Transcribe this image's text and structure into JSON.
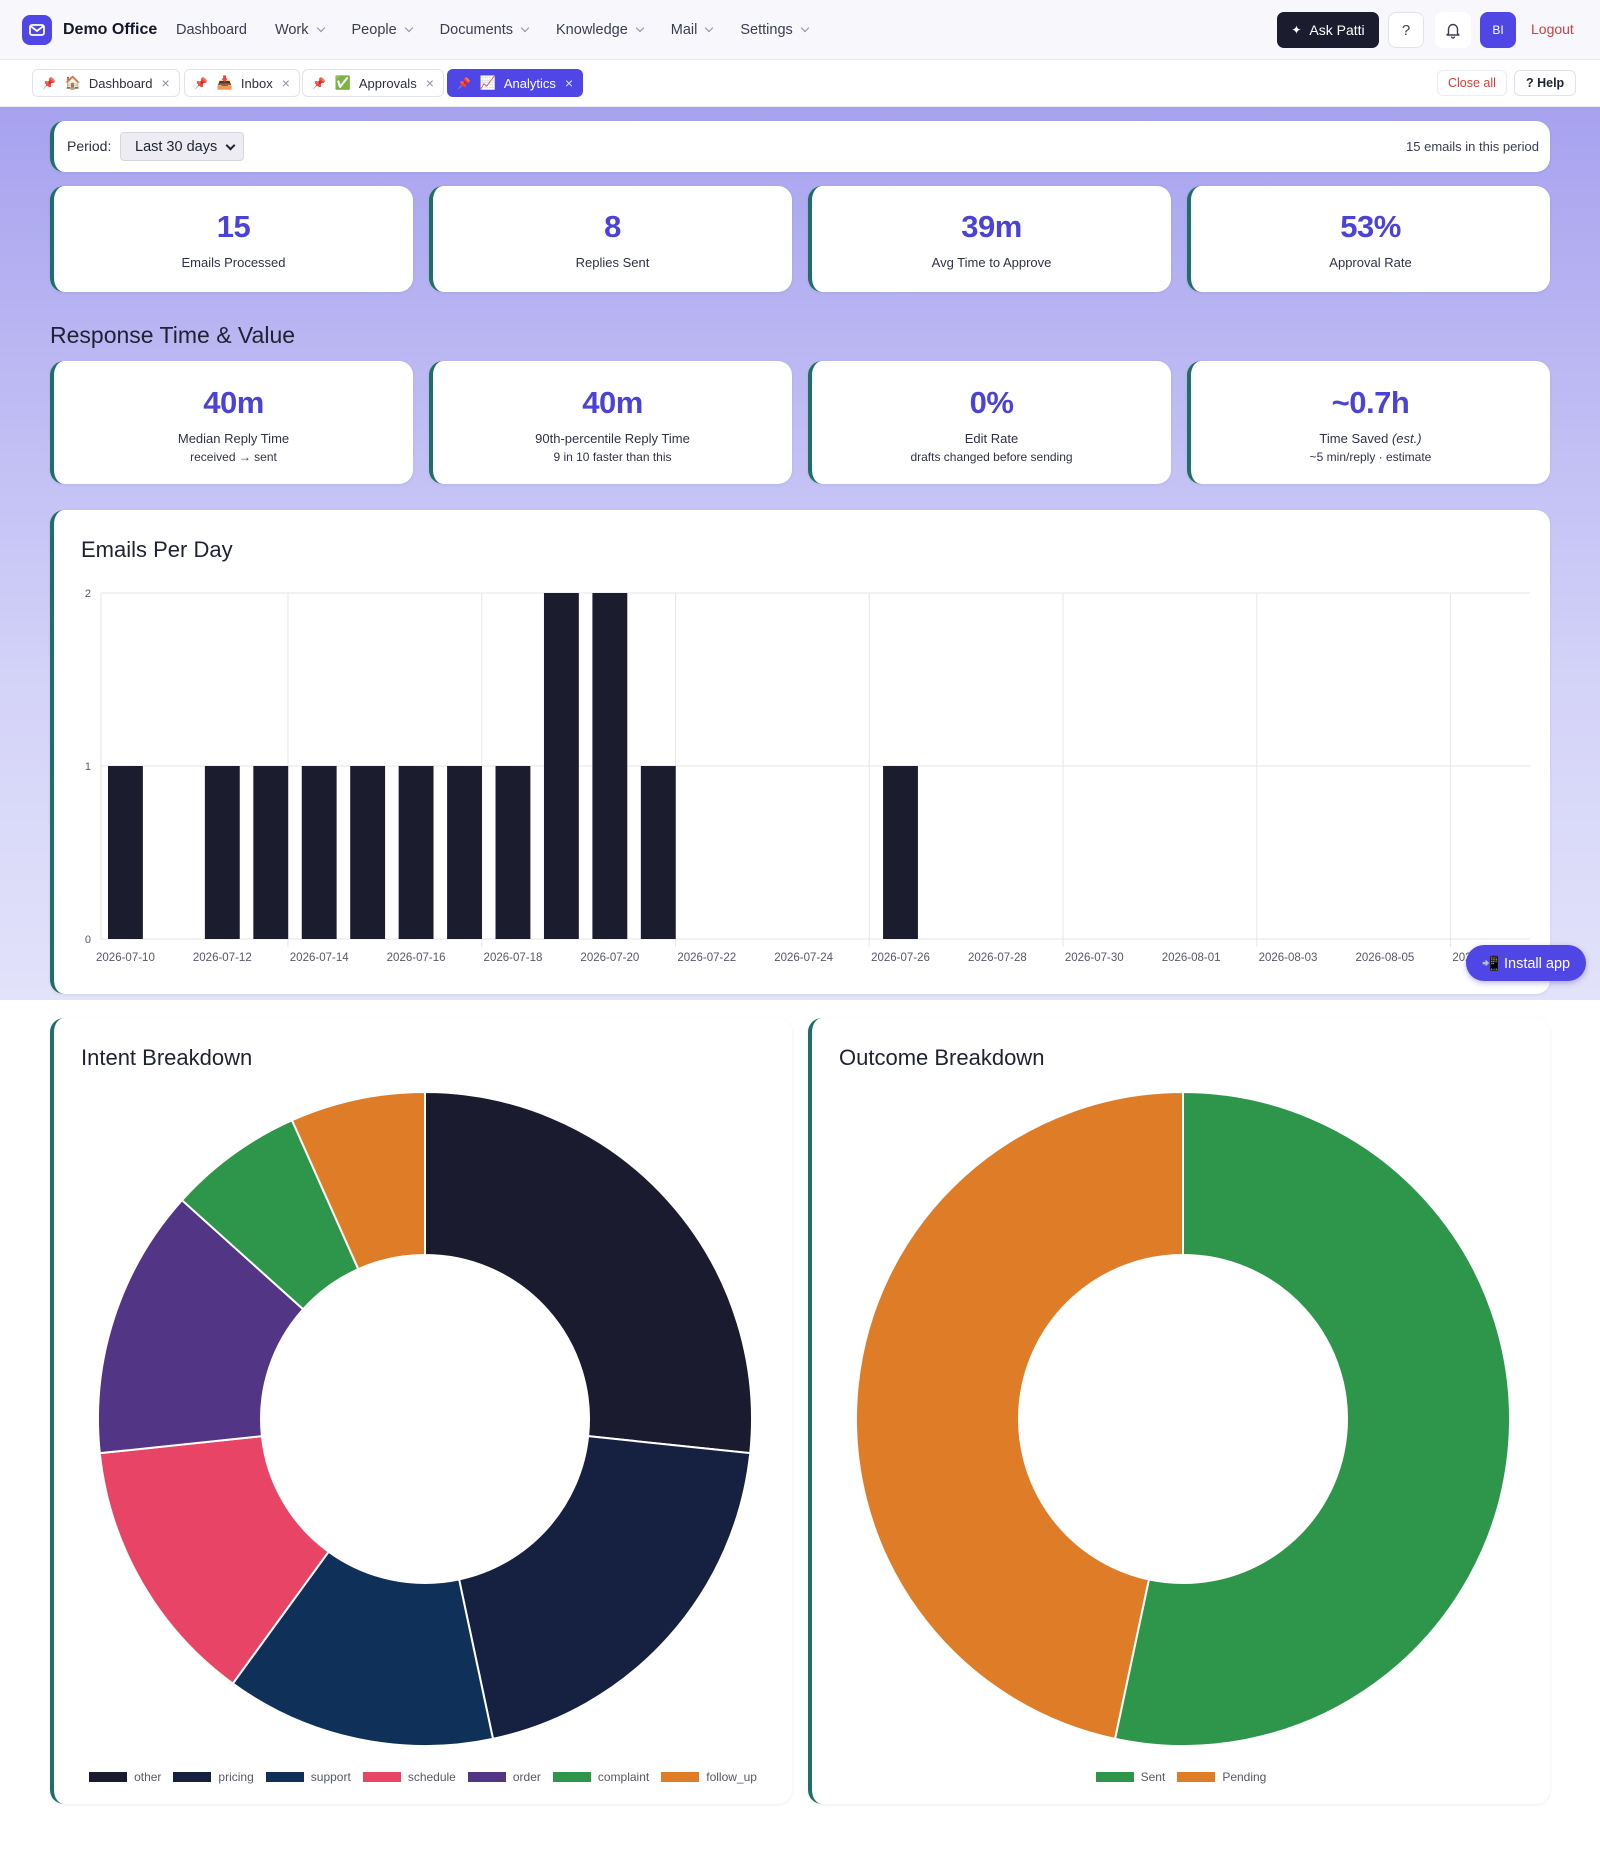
{
  "app": {
    "name": "Demo Office"
  },
  "nav": {
    "items": [
      {
        "label": "Dashboard",
        "dropdown": false
      },
      {
        "label": "Work",
        "dropdown": true
      },
      {
        "label": "People",
        "dropdown": true
      },
      {
        "label": "Documents",
        "dropdown": true
      },
      {
        "label": "Knowledge",
        "dropdown": true
      },
      {
        "label": "Mail",
        "dropdown": true
      },
      {
        "label": "Settings",
        "dropdown": true
      }
    ],
    "ask_label": "Ask Patti",
    "help_icon": "?",
    "avatar_initials": "BI",
    "logout_label": "Logout"
  },
  "tabs": [
    {
      "label": "Dashboard",
      "emoji": "🏠",
      "active": false
    },
    {
      "label": "Inbox",
      "emoji": "📥",
      "active": false
    },
    {
      "label": "Approvals",
      "emoji": "✅",
      "active": false
    },
    {
      "label": "Analytics",
      "emoji": "📈",
      "active": true
    }
  ],
  "tabbar": {
    "close_all": "Close all",
    "help": "? Help"
  },
  "period": {
    "label": "Period:",
    "selected": "Last 30 days",
    "count_text": "15 emails in this period"
  },
  "stats": [
    {
      "value": "15",
      "label": "Emails Processed"
    },
    {
      "value": "8",
      "label": "Replies Sent"
    },
    {
      "value": "39m",
      "label": "Avg Time to Approve"
    },
    {
      "value": "53%",
      "label": "Approval Rate"
    }
  ],
  "response_section": {
    "title": "Response Time & Value",
    "stats": [
      {
        "value": "40m",
        "label": "Median Reply Time",
        "sub": "received → sent"
      },
      {
        "value": "40m",
        "label": "90th-percentile Reply Time",
        "sub": "9 in 10 faster than this"
      },
      {
        "value": "0%",
        "label": "Edit Rate",
        "sub": "drafts changed before sending"
      },
      {
        "value": "~0.7h",
        "label": "Time Saved",
        "label_em": "(est.)",
        "sub": "~5 min/reply · estimate"
      }
    ]
  },
  "install_label": "📲 Install app",
  "colors": {
    "accent": "#4f46e5",
    "bar": "#1b1d2e",
    "card_border": "#1f6f66",
    "logout": "#d63c3c"
  },
  "chart_data": [
    {
      "type": "bar",
      "title": "Emails Per Day",
      "x": [
        "2026-07-10",
        "2026-07-11",
        "2026-07-12",
        "2026-07-13",
        "2026-07-14",
        "2026-07-15",
        "2026-07-16",
        "2026-07-17",
        "2026-07-18",
        "2026-07-19",
        "2026-07-20",
        "2026-07-21",
        "2026-07-22",
        "2026-07-23",
        "2026-07-24",
        "2026-07-25",
        "2026-07-26",
        "2026-07-27",
        "2026-07-28",
        "2026-07-29",
        "2026-07-30",
        "2026-07-31",
        "2026-08-01",
        "2026-08-02",
        "2026-08-03",
        "2026-08-04",
        "2026-08-05",
        "2026-08-06",
        "2026-08-07",
        "2026-08-08"
      ],
      "values": [
        1,
        0,
        1,
        1,
        1,
        1,
        1,
        1,
        1,
        2,
        2,
        1,
        0,
        0,
        0,
        0,
        1,
        0,
        0,
        0,
        0,
        0,
        0,
        0,
        0,
        0,
        0,
        0,
        0,
        0
      ],
      "x_tick_labels": [
        "2026-07-10",
        "2026-07-12",
        "2026-07-14",
        "2026-07-16",
        "2026-07-18",
        "2026-07-20",
        "2026-07-22",
        "2026-07-24",
        "2026-07-26",
        "2026-07-28",
        "2026-07-30",
        "2026-08-01",
        "2026-08-03",
        "2026-08-05",
        "2026-08-07"
      ],
      "y_ticks": [
        0,
        1,
        2
      ],
      "ylim": [
        0,
        2
      ],
      "grid": true
    },
    {
      "type": "pie",
      "title": "Intent Breakdown",
      "categories": [
        "other",
        "pricing",
        "support",
        "schedule",
        "order",
        "complaint",
        "follow_up"
      ],
      "values": [
        4,
        3,
        2,
        2,
        2,
        1,
        1
      ],
      "colors": [
        "#1b1b2f",
        "#162040",
        "#0f3159",
        "#e84566",
        "#523584",
        "#2e964a",
        "#df7c27"
      ],
      "legend": "bottom"
    },
    {
      "type": "pie",
      "title": "Outcome Breakdown",
      "categories": [
        "Sent",
        "Pending"
      ],
      "values": [
        8,
        7
      ],
      "colors": [
        "#2e964a",
        "#df7c27"
      ],
      "legend": "bottom"
    }
  ]
}
